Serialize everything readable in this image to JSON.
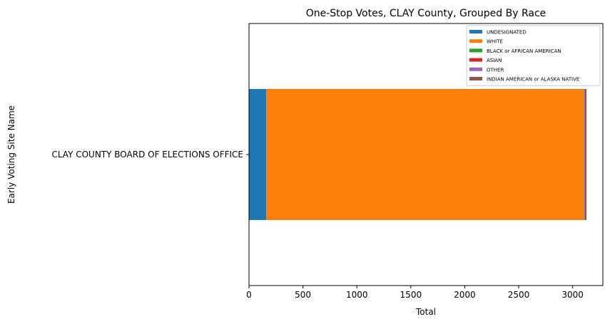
{
  "chart_data": {
    "type": "bar",
    "orientation": "horizontal",
    "stacked": true,
    "title": "One-Stop Votes, CLAY County, Grouped By Race",
    "xlabel": "Total",
    "ylabel": "Early Voting Site Name",
    "categories": [
      "CLAY COUNTY BOARD OF ELECTIONS OFFICE"
    ],
    "xlim": [
      0,
      3280
    ],
    "xticks": [
      0,
      500,
      1000,
      1500,
      2000,
      2500,
      3000
    ],
    "legend_position": "top-right",
    "grid": false,
    "series": [
      {
        "name": "UNDESIGNATED",
        "color": "#1f77b4",
        "values": [
          160
        ]
      },
      {
        "name": "WHITE",
        "color": "#ff7f0e",
        "values": [
          2940
        ]
      },
      {
        "name": "BLACK or AFRICAN AMERICAN",
        "color": "#2ca02c",
        "values": [
          3
        ]
      },
      {
        "name": "ASIAN",
        "color": "#d62728",
        "values": [
          4
        ]
      },
      {
        "name": "OTHER",
        "color": "#9467bd",
        "values": [
          6
        ]
      },
      {
        "name": "INDIAN AMERICAN or ALASKA NATIVE",
        "color": "#8c564b",
        "values": [
          15
        ]
      }
    ]
  }
}
